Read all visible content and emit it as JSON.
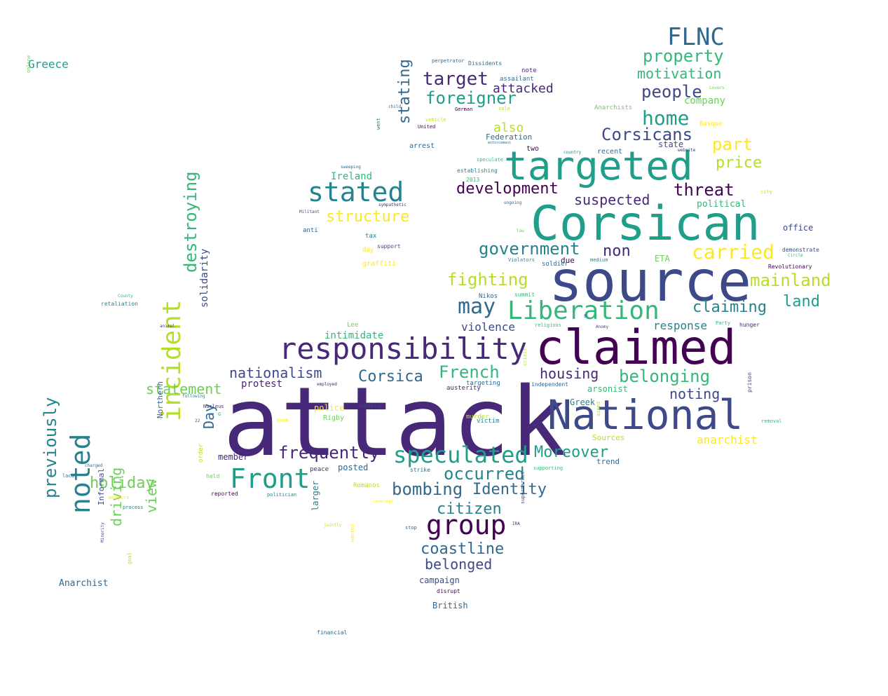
{
  "palette": [
    "#440154",
    "#482878",
    "#3e4989",
    "#31688e",
    "#26828e",
    "#1f9e89",
    "#35b779",
    "#6ece58",
    "#b5de2b",
    "#fde725"
  ],
  "words": [
    {
      "text": "attack",
      "color": "#482878"
    },
    {
      "text": "source",
      "color": "#3e4989"
    },
    {
      "text": "Corsican",
      "color": "#1f9e89"
    },
    {
      "text": "claimed",
      "color": "#440154"
    },
    {
      "text": "National",
      "color": "#3e4989"
    },
    {
      "text": "targeted",
      "color": "#1f9e89"
    },
    {
      "text": "responsibility",
      "color": "#482878"
    },
    {
      "text": "Liberation",
      "color": "#35b779"
    },
    {
      "text": "incident",
      "color": "#b5de2b"
    },
    {
      "text": "noted",
      "color": "#26828e"
    },
    {
      "text": "Front",
      "color": "#1f9e89"
    },
    {
      "text": "group",
      "color": "#440154"
    },
    {
      "text": "speculated",
      "color": "#1f9e89"
    },
    {
      "text": "stated",
      "color": "#26828e"
    },
    {
      "text": "FLNC",
      "color": "#31688e"
    },
    {
      "text": "home",
      "color": "#1f9e89"
    },
    {
      "text": "previously",
      "color": "#26828e"
    },
    {
      "text": "frequently",
      "color": "#482878"
    },
    {
      "text": "may",
      "color": "#31688e"
    },
    {
      "text": "carried",
      "color": "#fde725"
    },
    {
      "text": "French",
      "color": "#35b779"
    },
    {
      "text": "target",
      "color": "#482878"
    },
    {
      "text": "foreigner",
      "color": "#1f9e89"
    },
    {
      "text": "government",
      "color": "#26828e"
    },
    {
      "text": "threat",
      "color": "#440154"
    },
    {
      "text": "mainland",
      "color": "#b5de2b"
    },
    {
      "text": "fighting",
      "color": "#b5de2b"
    },
    {
      "text": "destroying",
      "color": "#35b779"
    },
    {
      "text": "belonging",
      "color": "#35b779"
    },
    {
      "text": "Corsicans",
      "color": "#3e4989"
    },
    {
      "text": "property",
      "color": "#35b779"
    },
    {
      "text": "development",
      "color": "#440154"
    },
    {
      "text": "people",
      "color": "#3e4989"
    },
    {
      "text": "bombing",
      "color": "#31688e"
    },
    {
      "text": "occurred",
      "color": "#26828e"
    },
    {
      "text": "Moreover",
      "color": "#1f9e89"
    },
    {
      "text": "coastline",
      "color": "#31688e"
    },
    {
      "text": "Corsica",
      "color": "#31688e"
    },
    {
      "text": "housing",
      "color": "#482878"
    },
    {
      "text": "holiday",
      "color": "#6ece58"
    },
    {
      "text": "claiming",
      "color": "#26828e"
    },
    {
      "text": "citizen",
      "color": "#26828e"
    },
    {
      "text": "Identity",
      "color": "#31688e"
    },
    {
      "text": "suspected",
      "color": "#482878"
    },
    {
      "text": "non",
      "color": "#482878"
    },
    {
      "text": "part",
      "color": "#fde725"
    },
    {
      "text": "price",
      "color": "#b5de2b"
    },
    {
      "text": "stating",
      "color": "#31688e"
    },
    {
      "text": "structure",
      "color": "#fde725"
    },
    {
      "text": "nationalism",
      "color": "#3e4989"
    },
    {
      "text": "statement",
      "color": "#6ece58"
    },
    {
      "text": "motivation",
      "color": "#35b779"
    },
    {
      "text": "land",
      "color": "#1f9e89"
    },
    {
      "text": "noting",
      "color": "#3e4989"
    },
    {
      "text": "belonged",
      "color": "#3e4989"
    },
    {
      "text": "Day",
      "color": "#31688e"
    },
    {
      "text": "view",
      "color": "#6ece58"
    },
    {
      "text": "driving",
      "color": "#6ece58"
    },
    {
      "text": "attacked",
      "color": "#482878"
    },
    {
      "text": "also",
      "color": "#b5de2b"
    },
    {
      "text": "response",
      "color": "#26828e"
    },
    {
      "text": "violence",
      "color": "#3e4989"
    },
    {
      "text": "anarchist",
      "color": "#fde725"
    },
    {
      "text": "company",
      "color": "#6ece58"
    },
    {
      "text": "solidarity",
      "color": "#3e4989"
    },
    {
      "text": "intimidate",
      "color": "#35b779"
    },
    {
      "text": "protest",
      "color": "#482878"
    },
    {
      "text": "Greece",
      "color": "#1f9e89"
    },
    {
      "text": "Ireland",
      "color": "#35b779"
    },
    {
      "text": "campaign",
      "color": "#3e4989"
    },
    {
      "text": "Anarchist",
      "color": "#31688e"
    },
    {
      "text": "British",
      "color": "#31688e"
    },
    {
      "text": "political",
      "color": "#35b779"
    },
    {
      "text": "member",
      "color": "#482878"
    },
    {
      "text": "posted",
      "color": "#31688e"
    },
    {
      "text": "arsonist",
      "color": "#35b779"
    },
    {
      "text": "Greek",
      "color": "#26828e"
    },
    {
      "text": "police",
      "color": "#fde725"
    },
    {
      "text": "larger",
      "color": "#26828e"
    },
    {
      "text": "Northern",
      "color": "#31688e"
    },
    {
      "text": "Informal",
      "color": "#3e4989"
    },
    {
      "text": "state",
      "color": "#3e4989"
    },
    {
      "text": "office",
      "color": "#3e4989"
    },
    {
      "text": "ETA",
      "color": "#6ece58"
    },
    {
      "text": "trend",
      "color": "#31688e"
    },
    {
      "text": "Sources",
      "color": "#b5de2b"
    },
    {
      "text": "Federation",
      "color": "#31688e"
    },
    {
      "text": "arrest",
      "color": "#31688e"
    },
    {
      "text": "two",
      "color": "#440154"
    },
    {
      "text": "recent",
      "color": "#31688e"
    },
    {
      "text": "graffiti",
      "color": "#fde725"
    },
    {
      "text": "order",
      "color": "#b5de2b"
    },
    {
      "text": "Rigby",
      "color": "#6ece58"
    },
    {
      "text": "murder",
      "color": "#b5de2b"
    },
    {
      "text": "victim",
      "color": "#26828e"
    },
    {
      "text": "peace",
      "color": "#482878"
    },
    {
      "text": "Romanos",
      "color": "#b5de2b"
    },
    {
      "text": "Anarchists",
      "color": "#6ece58"
    },
    {
      "text": "Basque",
      "color": "#fde725"
    },
    {
      "text": "assailant",
      "color": "#31688e"
    },
    {
      "text": "note",
      "color": "#482878"
    },
    {
      "text": "Dissidents",
      "color": "#31688e"
    },
    {
      "text": "perpetrator",
      "color": "#31688e"
    },
    {
      "text": "anti",
      "color": "#31688e"
    },
    {
      "text": "tax",
      "color": "#26828e"
    },
    {
      "text": "support",
      "color": "#3e4989"
    },
    {
      "text": "day",
      "color": "#fde725"
    },
    {
      "text": "due",
      "color": "#440154"
    },
    {
      "text": "soldier",
      "color": "#31688e"
    },
    {
      "text": "summit",
      "color": "#35b779"
    },
    {
      "text": "Nikos",
      "color": "#31688e"
    },
    {
      "text": "Lee",
      "color": "#6ece58"
    },
    {
      "text": "hunger",
      "color": "#482878"
    },
    {
      "text": "Party",
      "color": "#35b779"
    },
    {
      "text": "demonstrate",
      "color": "#3e4989"
    },
    {
      "text": "Revolutionary",
      "color": "#440154"
    },
    {
      "text": "independent",
      "color": "#31688e"
    },
    {
      "text": "targeting",
      "color": "#31688e"
    },
    {
      "text": "austerity",
      "color": "#482878"
    },
    {
      "text": "retaliation",
      "color": "#26828e"
    },
    {
      "text": "held",
      "color": "#6ece58"
    },
    {
      "text": "reported",
      "color": "#440154"
    },
    {
      "text": "process",
      "color": "#26828e"
    },
    {
      "text": "local",
      "color": "#31688e"
    },
    {
      "text": "politician",
      "color": "#26828e"
    },
    {
      "text": "strike",
      "color": "#31688e"
    },
    {
      "text": "stop",
      "color": "#31688e"
    },
    {
      "text": "supporting",
      "color": "#35b779"
    },
    {
      "text": "financial",
      "color": "#31688e"
    },
    {
      "text": "disrupt",
      "color": "#440154"
    },
    {
      "text": "sale",
      "color": "#b5de2b"
    },
    {
      "text": "German",
      "color": "#440154"
    },
    {
      "text": "United",
      "color": "#440154"
    },
    {
      "text": "vehicle",
      "color": "#b5de2b"
    },
    {
      "text": "speculate",
      "color": "#35b779"
    },
    {
      "text": "establishing",
      "color": "#26828e"
    },
    {
      "text": "2013",
      "color": "#35b779"
    },
    {
      "text": "ongoing",
      "color": "#31688e"
    },
    {
      "text": "Militant",
      "color": "#3e4989"
    },
    {
      "text": "sympathetic",
      "color": "#482878"
    },
    {
      "text": "country",
      "color": "#26828e"
    },
    {
      "text": "law",
      "color": "#6ece58"
    },
    {
      "text": "website",
      "color": "#482878"
    },
    {
      "text": "city",
      "color": "#b5de2b"
    },
    {
      "text": "Lovers",
      "color": "#6ece58"
    },
    {
      "text": "went",
      "color": "#26828e"
    },
    {
      "text": "enforcement",
      "color": "#31688e"
    },
    {
      "text": "online",
      "color": "#6ece58"
    },
    {
      "text": "bomb",
      "color": "#fde725"
    },
    {
      "text": "crisis",
      "color": "#b5de2b"
    },
    {
      "text": "supermarket",
      "color": "#3e4989"
    },
    {
      "text": "wanted",
      "color": "#fde725"
    },
    {
      "text": "prison",
      "color": "#3e4989"
    },
    {
      "text": "removal",
      "color": "#35b779"
    },
    {
      "text": "Nucleus",
      "color": "#482878"
    },
    {
      "text": "following",
      "color": "#26828e"
    },
    {
      "text": "employed",
      "color": "#482878"
    },
    {
      "text": "religious",
      "color": "#35b779"
    },
    {
      "text": "Anomy",
      "color": "#3e4989"
    },
    {
      "text": "animal",
      "color": "#3e4989"
    },
    {
      "text": "coverage",
      "color": "#fde725"
    },
    {
      "text": "measure",
      "color": "#fde725"
    },
    {
      "text": "goal",
      "color": "#b5de2b"
    },
    {
      "text": "aimed",
      "color": "#b5de2b"
    },
    {
      "text": "IRA",
      "color": "#482878"
    },
    {
      "text": "Violators",
      "color": "#26828e"
    },
    {
      "text": "medium",
      "color": "#26828e"
    },
    {
      "text": "G",
      "color": "#35b779"
    },
    {
      "text": "22",
      "color": "#3e4989"
    },
    {
      "text": "republican",
      "color": "#3e4989"
    },
    {
      "text": "jointly",
      "color": "#b5de2b"
    },
    {
      "text": "child",
      "color": "#31688e"
    },
    {
      "text": "sweeping",
      "color": "#31688e"
    },
    {
      "text": "charged",
      "color": "#31688e"
    },
    {
      "text": "County",
      "color": "#35b779"
    },
    {
      "text": "Circle",
      "color": "#35b779"
    },
    {
      "text": "Minority",
      "color": "#3e4989"
    },
    {
      "text": "8",
      "color": "#31688e"
    }
  ]
}
